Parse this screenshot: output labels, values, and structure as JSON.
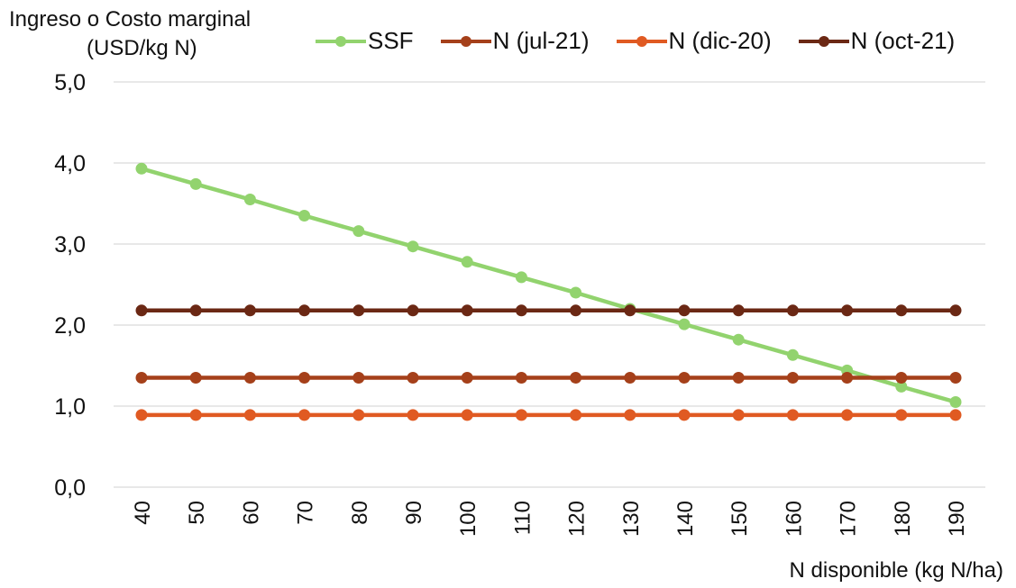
{
  "chart_data": {
    "type": "line",
    "ylabel_line1": "Ingreso o Costo marginal",
    "ylabel_line2": "(USD/kg N)",
    "xlabel": "N disponible (kg N/ha)",
    "x": [
      40,
      50,
      60,
      70,
      80,
      90,
      100,
      110,
      120,
      130,
      140,
      150,
      160,
      170,
      180,
      190
    ],
    "ylim": [
      0,
      5
    ],
    "yticks": [
      0,
      1,
      2,
      3,
      4,
      5
    ],
    "ytick_labels": [
      "0,0",
      "1,0",
      "2,0",
      "3,0",
      "4,0",
      "5,0"
    ],
    "grid": true,
    "legend_position": "top",
    "series": [
      {
        "name": "SSF",
        "color": "#92D36E",
        "values": [
          3.93,
          3.74,
          3.55,
          3.35,
          3.16,
          2.97,
          2.78,
          2.59,
          2.4,
          2.2,
          2.01,
          1.82,
          1.63,
          1.44,
          1.24,
          1.05
        ]
      },
      {
        "name": "N (jul-21)",
        "color": "#A5401A",
        "values": [
          1.35,
          1.35,
          1.35,
          1.35,
          1.35,
          1.35,
          1.35,
          1.35,
          1.35,
          1.35,
          1.35,
          1.35,
          1.35,
          1.35,
          1.35,
          1.35
        ]
      },
      {
        "name": "N (dic-20)",
        "color": "#E05A22",
        "values": [
          0.89,
          0.89,
          0.89,
          0.89,
          0.89,
          0.89,
          0.89,
          0.89,
          0.89,
          0.89,
          0.89,
          0.89,
          0.89,
          0.89,
          0.89,
          0.89
        ]
      },
      {
        "name": "N (oct-21)",
        "color": "#6B2814",
        "values": [
          2.18,
          2.18,
          2.18,
          2.18,
          2.18,
          2.18,
          2.18,
          2.18,
          2.18,
          2.18,
          2.18,
          2.18,
          2.18,
          2.18,
          2.18,
          2.18
        ]
      }
    ],
    "gridline_color": "#D9D9D9"
  }
}
